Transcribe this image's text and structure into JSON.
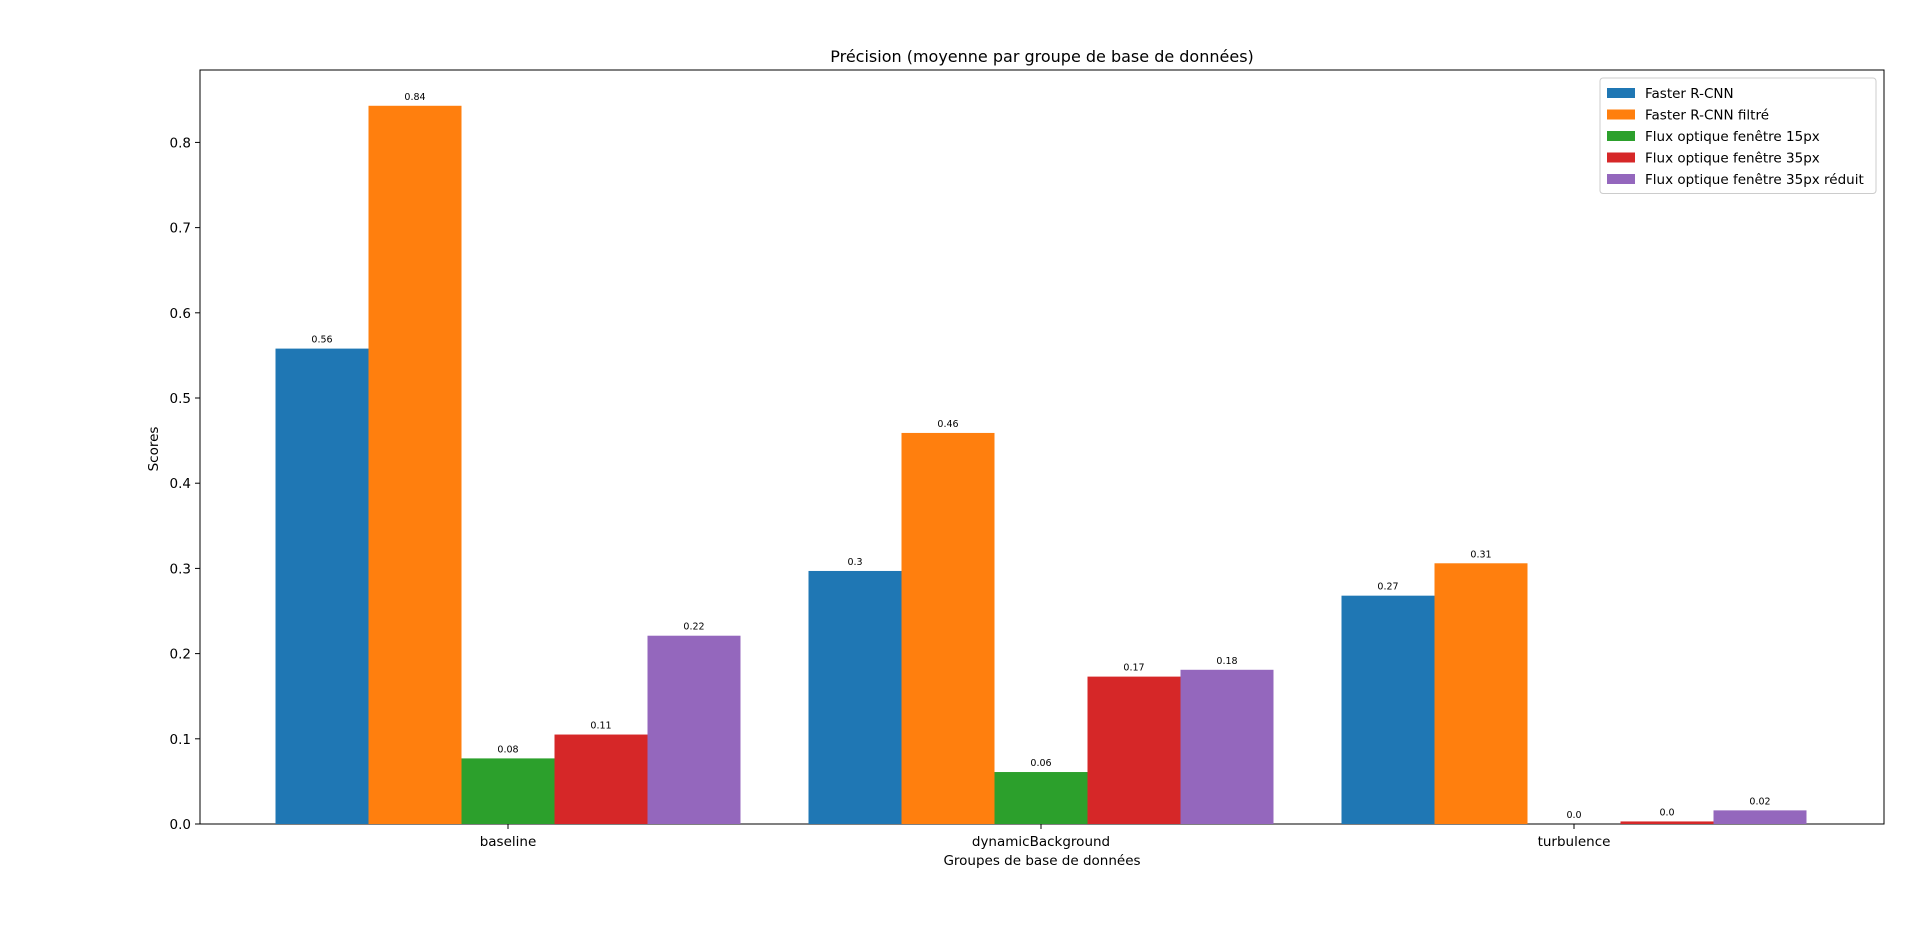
{
  "chart_data": {
    "type": "bar",
    "title": "Précision (moyenne par groupe de base de données)",
    "xlabel": "Groupes de base de données",
    "ylabel": "Scores",
    "categories": [
      "baseline",
      "dynamicBackground",
      "turbulence"
    ],
    "ylim": [
      0,
      0.885
    ],
    "yticks": [
      "0.0",
      "0.1",
      "0.2",
      "0.3",
      "0.4",
      "0.5",
      "0.6",
      "0.7",
      "0.8"
    ],
    "legend_position": "top-right",
    "grid": false,
    "series": [
      {
        "name": "Faster R-CNN",
        "color": "#1f77b4",
        "values": [
          0.558,
          0.297,
          0.268
        ],
        "labels": [
          "0.56",
          "0.3",
          "0.27"
        ]
      },
      {
        "name": "Faster R-CNN filtré",
        "color": "#ff7f0e",
        "values": [
          0.843,
          0.459,
          0.306
        ],
        "labels": [
          "0.84",
          "0.46",
          "0.31"
        ]
      },
      {
        "name": "Flux optique fenêtre 15px",
        "color": "#2ca02c",
        "values": [
          0.077,
          0.061,
          0.0
        ],
        "labels": [
          "0.08",
          "0.06",
          "0.0"
        ]
      },
      {
        "name": "Flux optique fenêtre 35px",
        "color": "#d62728",
        "values": [
          0.105,
          0.173,
          0.003
        ],
        "labels": [
          "0.11",
          "0.17",
          "0.0"
        ]
      },
      {
        "name": "Flux optique fenêtre 35px réduit",
        "color": "#9467bd",
        "values": [
          0.221,
          0.181,
          0.016
        ],
        "labels": [
          "0.22",
          "0.18",
          "0.02"
        ]
      }
    ]
  }
}
